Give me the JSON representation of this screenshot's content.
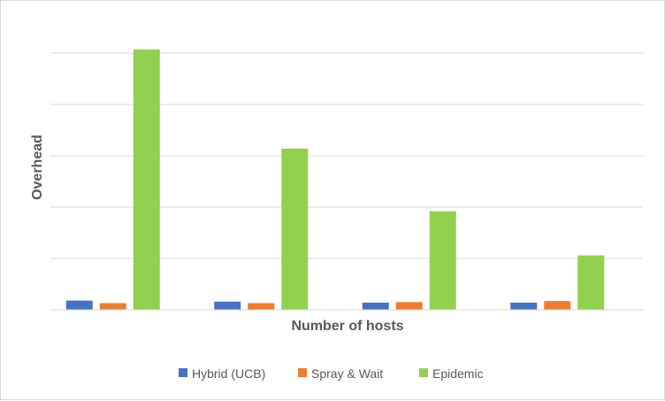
{
  "chart_data": {
    "type": "bar",
    "categories": [
      "",
      "",
      "",
      ""
    ],
    "xlabel": "Number of hosts",
    "ylabel": "Overhead",
    "ylim": [
      0,
      5
    ],
    "grid": true,
    "legend_position": "bottom",
    "series": [
      {
        "name": "Hybrid (UCB)",
        "color": "#4472C4",
        "values": [
          0.18,
          0.16,
          0.14,
          0.14
        ]
      },
      {
        "name": "Spray & Wait",
        "color": "#ED7D31",
        "values": [
          0.13,
          0.13,
          0.15,
          0.17
        ]
      },
      {
        "name": "Epidemic",
        "color": "#92D050",
        "values": [
          5.07,
          3.14,
          1.92,
          1.06
        ]
      }
    ]
  }
}
